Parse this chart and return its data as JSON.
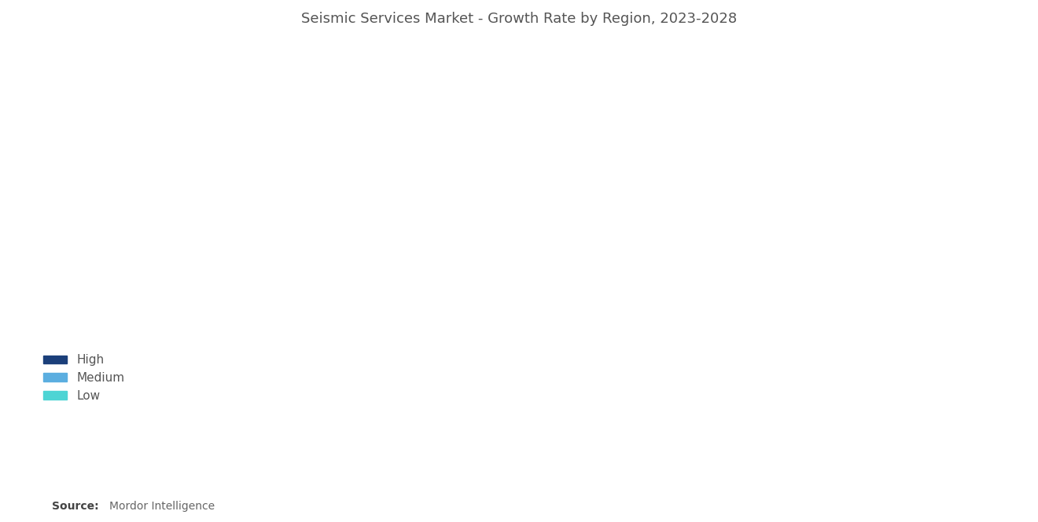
{
  "title": "Seismic Services Market - Growth Rate by Region, 2023-2028",
  "title_fontsize": 13,
  "title_color": "#555555",
  "background_color": "#ffffff",
  "legend_labels": [
    "High",
    "Medium",
    "Low"
  ],
  "legend_colors": [
    "#1b3f7a",
    "#5baee0",
    "#4dd4d4"
  ],
  "source_bold": "Source:",
  "source_normal": " Mordor Intelligence",
  "region_colors": {
    "high": "#1b3f7a",
    "medium": "#5baee0",
    "low": "#4dd4d4",
    "greenland": "#9e9e9e",
    "no_data": "#e8e8e8",
    "ocean": "#ffffff"
  },
  "map_figsize": [
    13.2,
    6.65
  ],
  "map_dpi": 100,
  "xlim": [
    -180,
    180
  ],
  "ylim": [
    -60,
    85
  ]
}
